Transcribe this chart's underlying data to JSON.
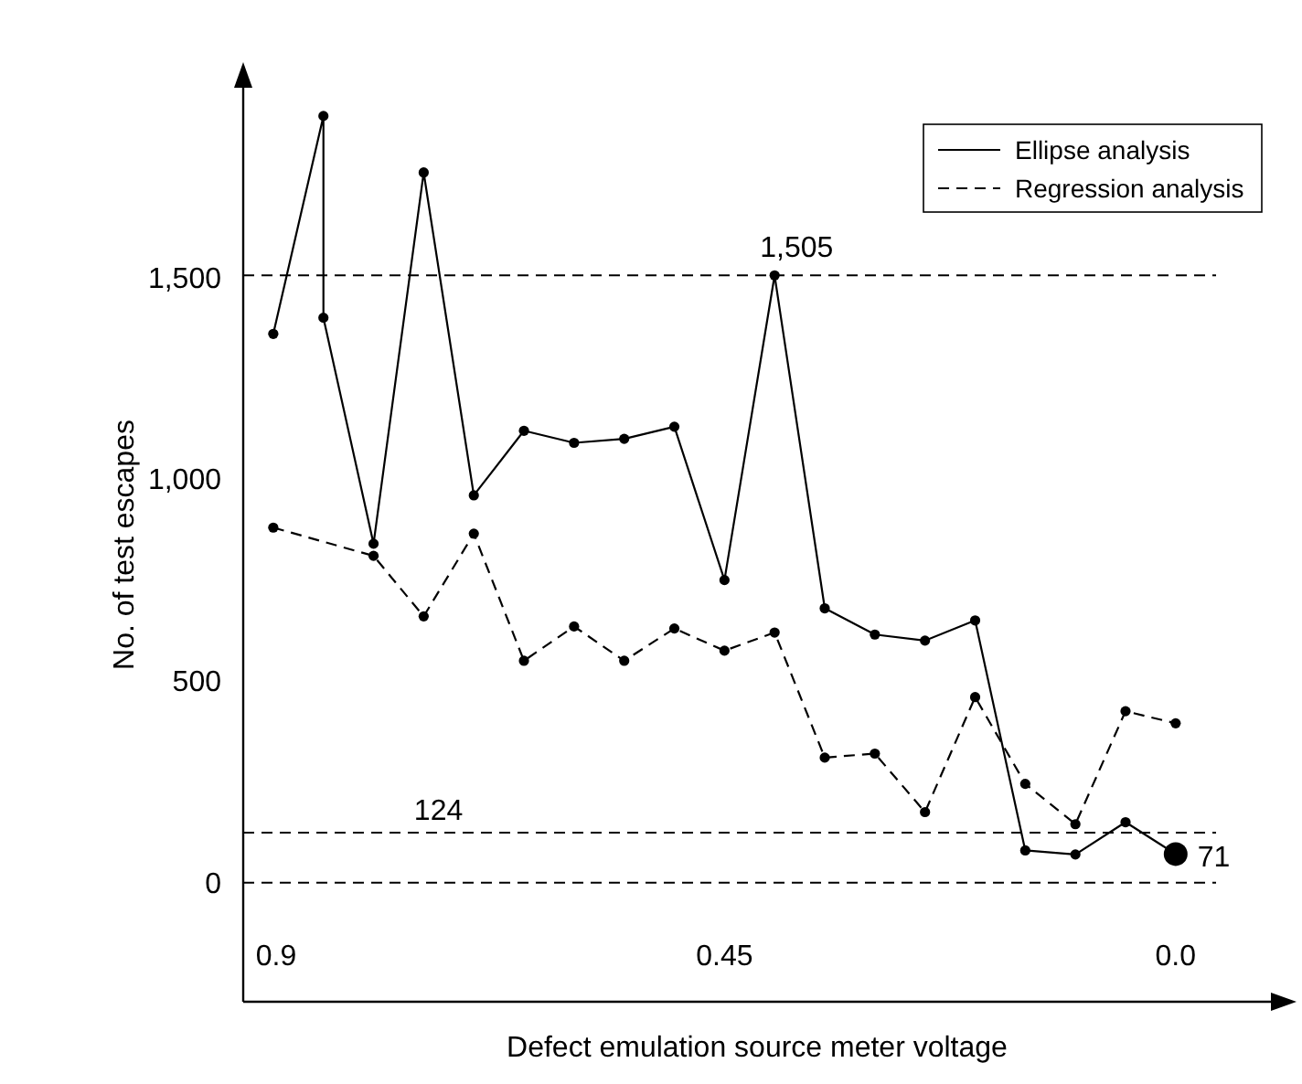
{
  "chart_data": {
    "type": "line",
    "xlabel": "Defect emulation source meter voltage",
    "ylabel": "No. of test escapes",
    "xlim": [
      0.93,
      -0.095
    ],
    "xticks": [
      {
        "value": 0.9,
        "label": "0.9"
      },
      {
        "value": 0.45,
        "label": "0.45"
      },
      {
        "value": 0,
        "label": "0.0"
      }
    ],
    "ylim": [
      -295,
      1970
    ],
    "yticks": [
      {
        "value": 0,
        "label": "0"
      },
      {
        "value": 500,
        "label": "500"
      },
      {
        "value": 1000,
        "label": "1,000"
      },
      {
        "value": 1500,
        "label": "1,500"
      }
    ],
    "series": [
      {
        "name": "Ellipse analysis",
        "color": "#000000",
        "line_style": "solid",
        "x": [
          0.9,
          0.85,
          0.85,
          0.8,
          0.75,
          0.7,
          0.65,
          0.6,
          0.55,
          0.5,
          0.45,
          0.4,
          0.35,
          0.3,
          0.25,
          0.2,
          0.15,
          0.1,
          0.05,
          0
        ],
        "values": [
          1360,
          1900,
          1400,
          840,
          1760,
          960,
          1120,
          1090,
          1100,
          1130,
          750,
          1505,
          680,
          615,
          600,
          650,
          80,
          70,
          150,
          71
        ]
      },
      {
        "name": "Regression analysis",
        "color": "#000000",
        "line_style": "dashed",
        "x": [
          0.9,
          0.8,
          0.75,
          0.7,
          0.65,
          0.6,
          0.55,
          0.5,
          0.45,
          0.4,
          0.35,
          0.3,
          0.25,
          0.2,
          0.15,
          0.1,
          0.05,
          0
        ],
        "values": [
          880,
          810,
          660,
          865,
          550,
          635,
          550,
          630,
          575,
          620,
          310,
          320,
          175,
          460,
          245,
          145,
          425,
          395
        ]
      }
    ],
    "ref_lines": [
      {
        "axis": "y",
        "value": 1505,
        "line_style": "dashed"
      },
      {
        "axis": "y",
        "value": 124,
        "label": "124",
        "line_style": "dashed"
      },
      {
        "axis": "y",
        "value": 0,
        "line_style": "dashed"
      }
    ],
    "annotations": [
      {
        "text": "1,505",
        "x": 0.4,
        "y": 1505
      },
      {
        "text": "71",
        "x": 0,
        "y": 71
      }
    ],
    "marker": "circle",
    "legend": "top right",
    "grid": false
  }
}
